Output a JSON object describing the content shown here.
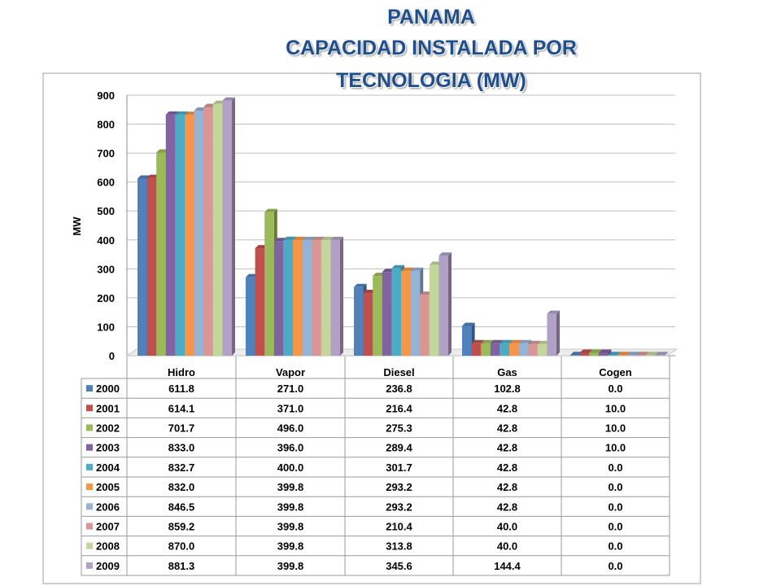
{
  "title": {
    "line1": "PANAMA",
    "line2": "CAPACIDAD INSTALADA POR",
    "line3": "TECNOLOGIA (MW)"
  },
  "chart_data": {
    "type": "bar",
    "title": "PANAMA CAPACIDAD INSTALADA POR TECNOLOGIA (MW)",
    "xlabel": "",
    "ylabel": "MW",
    "ylim": [
      0,
      900
    ],
    "yticks": [
      "0",
      "100",
      "200",
      "300",
      "400",
      "500",
      "600",
      "700",
      "800",
      "900"
    ],
    "grid": true,
    "legend": "data-table",
    "categories": [
      "Hidro",
      "Vapor",
      "Diesel",
      "Gas",
      "Cogen"
    ],
    "series": [
      {
        "name": "2000",
        "color": "#4f81bd",
        "values": [
          611.8,
          271.0,
          236.8,
          102.8,
          0.0
        ],
        "labels": [
          "611.8",
          "271.0",
          "236.8",
          "102.8",
          "0.0"
        ]
      },
      {
        "name": "2001",
        "color": "#c0504d",
        "values": [
          614.1,
          371.0,
          216.4,
          42.8,
          10.0
        ],
        "labels": [
          "614.1",
          "371.0",
          "216.4",
          "42.8",
          "10.0"
        ]
      },
      {
        "name": "2002",
        "color": "#9bbb59",
        "values": [
          701.7,
          496.0,
          275.3,
          42.8,
          10.0
        ],
        "labels": [
          "701.7",
          "496.0",
          "275.3",
          "42.8",
          "10.0"
        ]
      },
      {
        "name": "2003",
        "color": "#8064a2",
        "values": [
          833.0,
          396.0,
          289.4,
          42.8,
          10.0
        ],
        "labels": [
          "833.0",
          "396.0",
          "289.4",
          "42.8",
          "10.0"
        ]
      },
      {
        "name": "2004",
        "color": "#4bacc6",
        "values": [
          832.7,
          400.0,
          301.7,
          42.8,
          0.0
        ],
        "labels": [
          "832.7",
          "400.0",
          "301.7",
          "42.8",
          "0.0"
        ]
      },
      {
        "name": "2005",
        "color": "#f79646",
        "values": [
          832.0,
          399.8,
          293.2,
          42.8,
          0.0
        ],
        "labels": [
          "832.0",
          "399.8",
          "293.2",
          "42.8",
          "0.0"
        ]
      },
      {
        "name": "2006",
        "color": "#95b3d7",
        "values": [
          846.5,
          399.8,
          293.2,
          42.8,
          0.0
        ],
        "labels": [
          "846.5",
          "399.8",
          "293.2",
          "42.8",
          "0.0"
        ]
      },
      {
        "name": "2007",
        "color": "#d99694",
        "values": [
          859.2,
          399.8,
          210.4,
          40.0,
          0.0
        ],
        "labels": [
          "859.2",
          "399.8",
          "210.4",
          "40.0",
          "0.0"
        ]
      },
      {
        "name": "2008",
        "color": "#c3d69b",
        "values": [
          870.0,
          399.8,
          313.8,
          40.0,
          0.0
        ],
        "labels": [
          "870.0",
          "399.8",
          "313.8",
          "40.0",
          "0.0"
        ]
      },
      {
        "name": "2009",
        "color": "#b2a1c7",
        "values": [
          881.3,
          399.8,
          345.6,
          144.4,
          0.0
        ],
        "labels": [
          "881.3",
          "399.8",
          "345.6",
          "144.4",
          "0.0"
        ]
      }
    ]
  }
}
